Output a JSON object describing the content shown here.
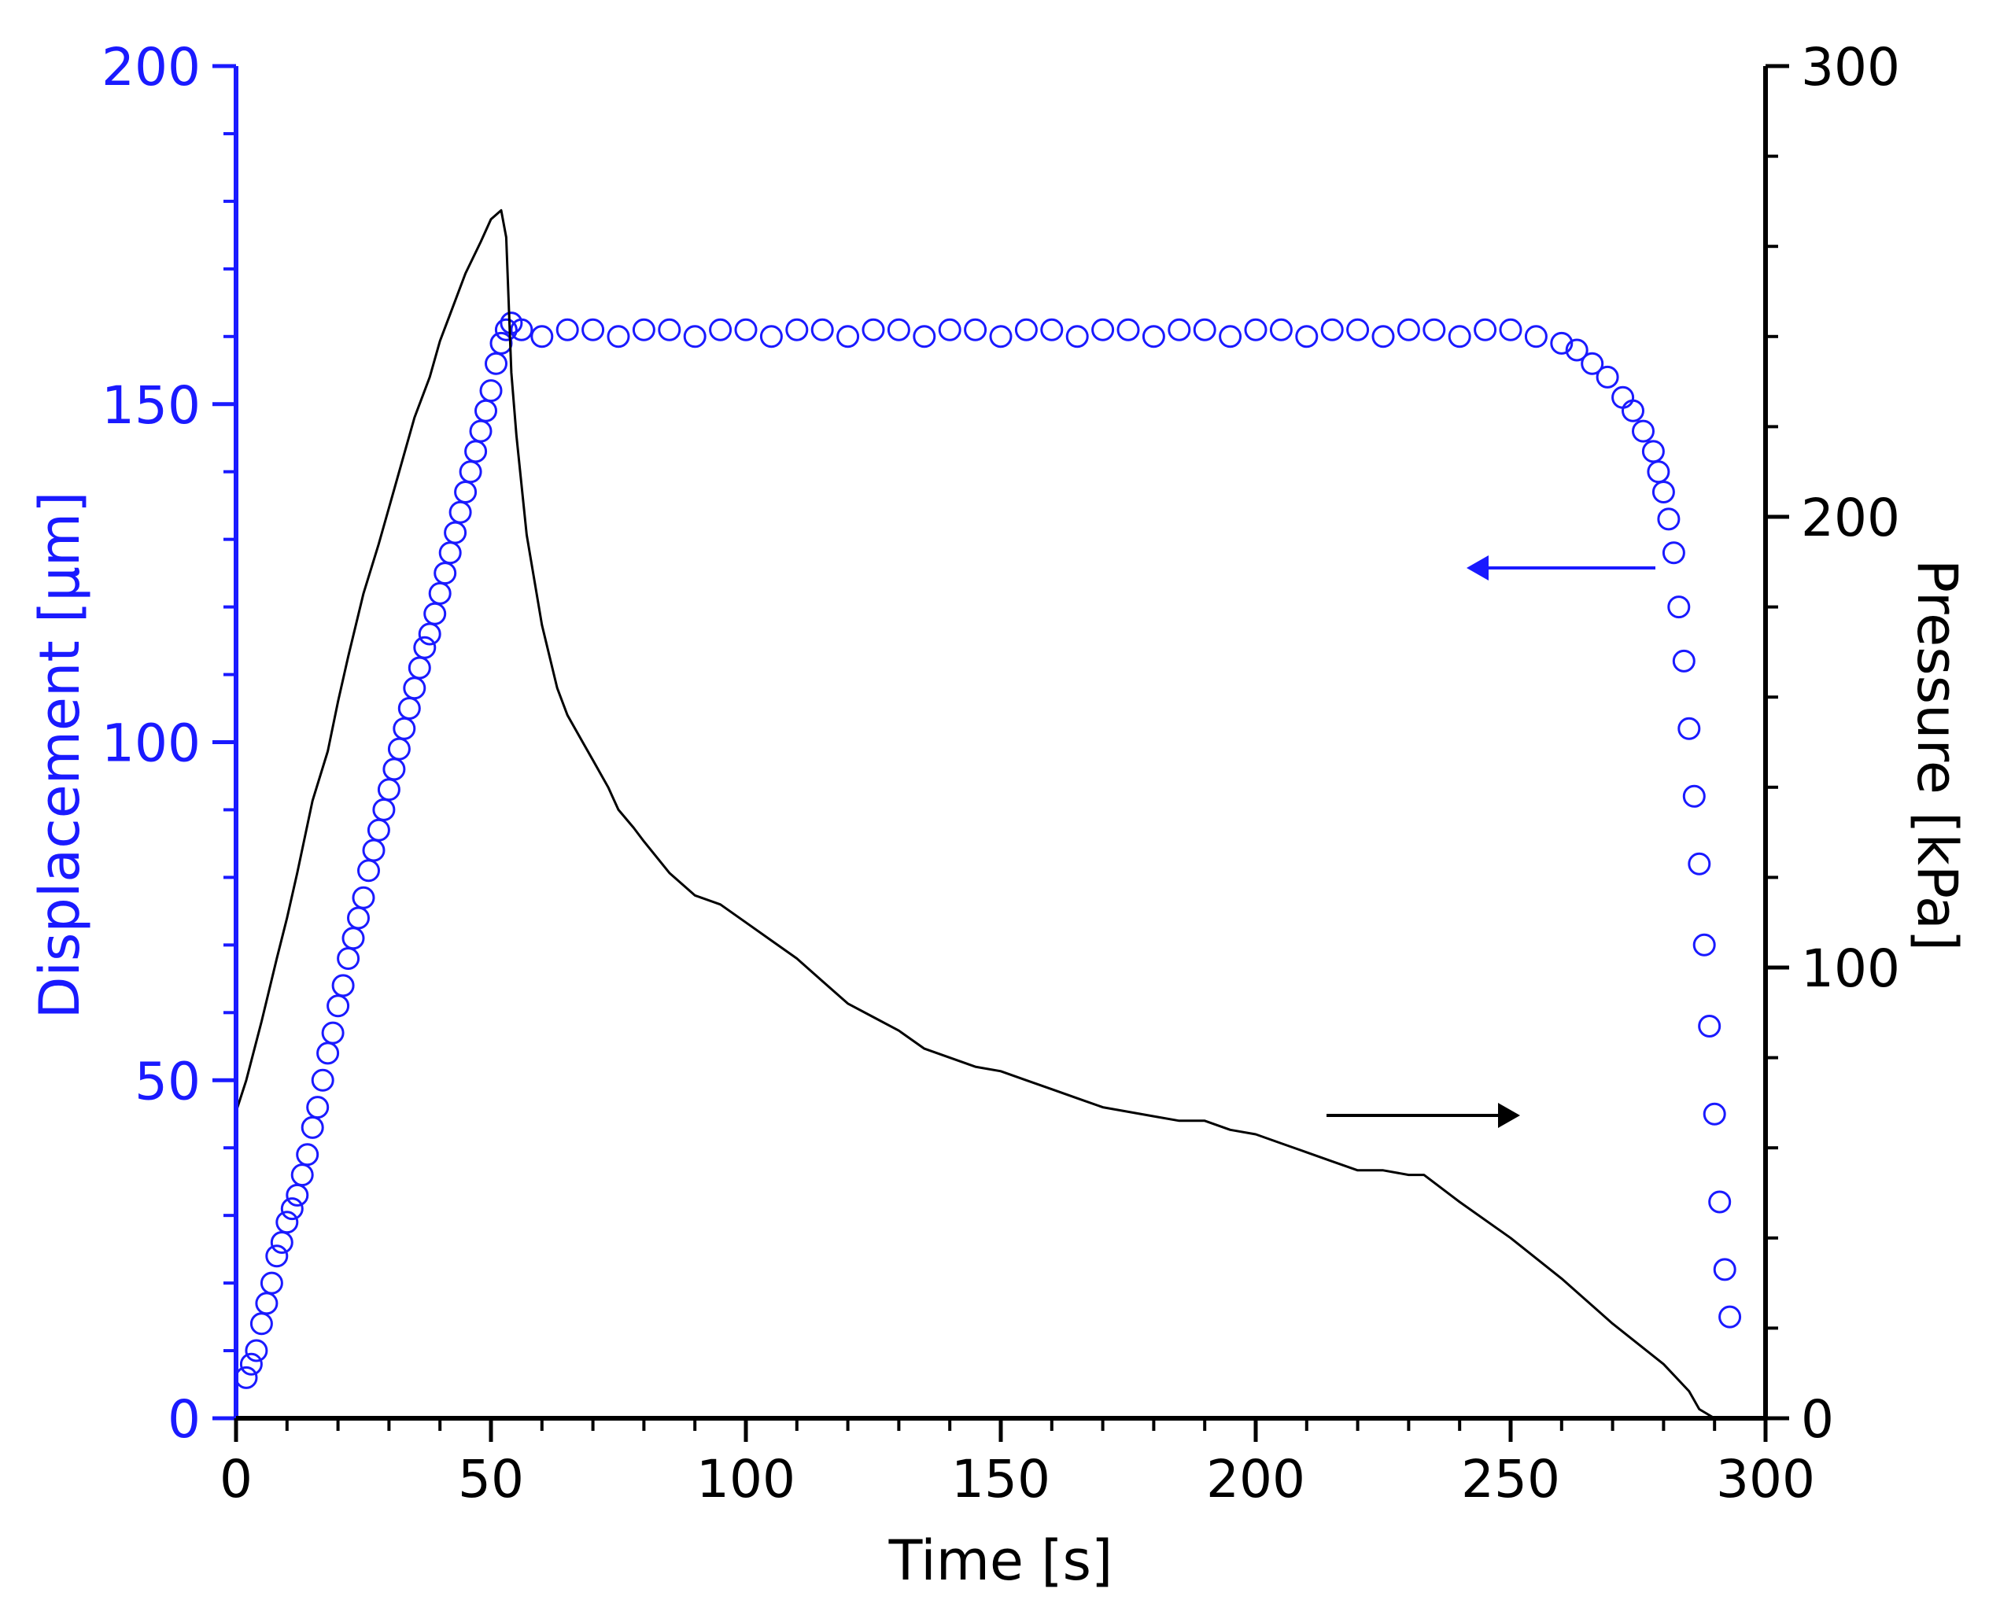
{
  "chart_data": {
    "type": "line+scatter",
    "xlabel": "Time [s]",
    "xlim": [
      0,
      300
    ],
    "x_ticks": [
      0,
      50,
      100,
      150,
      200,
      250,
      300
    ],
    "x_tick_labels": [
      "0",
      "50",
      "100",
      "150",
      "200",
      "250",
      "300"
    ],
    "y_left": {
      "label": "Displacement [µm]",
      "lim": [
        0,
        200
      ],
      "ticks": [
        0,
        50,
        100,
        150,
        200
      ],
      "tick_labels": [
        "0",
        "50",
        "100",
        "150",
        "200"
      ],
      "color": "#1a1aff"
    },
    "y_right": {
      "label": "Pressure [kPa]",
      "lim": [
        0,
        300
      ],
      "ticks": [
        0,
        100,
        200,
        300
      ],
      "tick_labels": [
        "0",
        "100",
        "200",
        "300"
      ],
      "color": "#000000"
    },
    "series": [
      {
        "name": "Displacement",
        "axis": "left",
        "style": "open-circles",
        "color": "#1a1aff",
        "x": [
          2,
          3,
          4,
          5,
          6,
          7,
          8,
          9,
          10,
          11,
          12,
          13,
          14,
          15,
          16,
          17,
          18,
          19,
          20,
          21,
          22,
          23,
          24,
          25,
          26,
          27,
          28,
          29,
          30,
          31,
          32,
          33,
          34,
          35,
          36,
          37,
          38,
          39,
          40,
          41,
          42,
          43,
          44,
          45,
          46,
          47,
          48,
          49,
          50,
          51,
          52,
          53,
          54,
          56,
          60,
          65,
          70,
          75,
          80,
          85,
          90,
          95,
          100,
          105,
          110,
          115,
          120,
          125,
          130,
          135,
          140,
          145,
          150,
          155,
          160,
          165,
          170,
          175,
          180,
          185,
          190,
          195,
          200,
          205,
          210,
          215,
          220,
          225,
          230,
          235,
          240,
          245,
          250,
          255,
          260,
          263,
          266,
          269,
          272,
          274,
          276,
          278,
          279,
          280,
          281,
          282,
          283,
          284,
          285,
          286,
          287,
          288,
          289,
          290,
          291,
          292,
          293
        ],
        "y": [
          6,
          8,
          10,
          14,
          17,
          20,
          24,
          26,
          29,
          31,
          33,
          36,
          39,
          43,
          46,
          50,
          54,
          57,
          61,
          64,
          68,
          71,
          74,
          77,
          81,
          84,
          87,
          90,
          93,
          96,
          99,
          102,
          105,
          108,
          111,
          114,
          116,
          119,
          122,
          125,
          128,
          131,
          134,
          137,
          140,
          143,
          146,
          149,
          152,
          156,
          159,
          161,
          162,
          161,
          160,
          161,
          161,
          160,
          161,
          161,
          160,
          161,
          161,
          160,
          161,
          161,
          160,
          161,
          161,
          160,
          161,
          161,
          160,
          161,
          161,
          160,
          161,
          161,
          160,
          161,
          161,
          160,
          161,
          161,
          160,
          161,
          161,
          160,
          161,
          161,
          160,
          161,
          161,
          160,
          159,
          158,
          156,
          154,
          151,
          149,
          146,
          143,
          140,
          137,
          133,
          128,
          120,
          112,
          102,
          92,
          82,
          70,
          58,
          45,
          32,
          22,
          15
        ]
      },
      {
        "name": "Pressure",
        "axis": "right",
        "style": "line",
        "color": "#000000",
        "x": [
          0,
          2,
          5,
          8,
          10,
          12,
          15,
          18,
          20,
          22,
          25,
          28,
          30,
          33,
          35,
          38,
          40,
          42,
          45,
          48,
          50,
          52,
          53,
          54,
          55,
          57,
          60,
          63,
          65,
          68,
          70,
          73,
          75,
          78,
          80,
          85,
          90,
          95,
          100,
          105,
          110,
          115,
          120,
          125,
          130,
          135,
          140,
          145,
          150,
          155,
          160,
          165,
          170,
          175,
          180,
          185,
          190,
          195,
          200,
          205,
          210,
          215,
          220,
          225,
          230,
          233,
          240,
          250,
          260,
          270,
          280,
          285,
          287,
          290,
          292
        ],
        "y": [
          68,
          75,
          88,
          102,
          111,
          121,
          137,
          148,
          159,
          169,
          183,
          194,
          202,
          214,
          222,
          231,
          239,
          245,
          254,
          261,
          266,
          268,
          262,
          232,
          218,
          196,
          176,
          162,
          156,
          150,
          146,
          140,
          135,
          131,
          128,
          121,
          116,
          114,
          110,
          106,
          102,
          97,
          92,
          89,
          86,
          82,
          80,
          78,
          77,
          75,
          73,
          71,
          69,
          68,
          67,
          66,
          66,
          64,
          63,
          61,
          59,
          57,
          55,
          55,
          54,
          54,
          48,
          40,
          31,
          21,
          12,
          6,
          2,
          0,
          0
        ]
      }
    ],
    "annotations": [
      {
        "type": "arrow",
        "direction": "left",
        "points_to": "left-axis",
        "color": "#1a1aff"
      },
      {
        "type": "arrow",
        "direction": "right",
        "points_to": "right-axis",
        "color": "#000000"
      }
    ]
  }
}
